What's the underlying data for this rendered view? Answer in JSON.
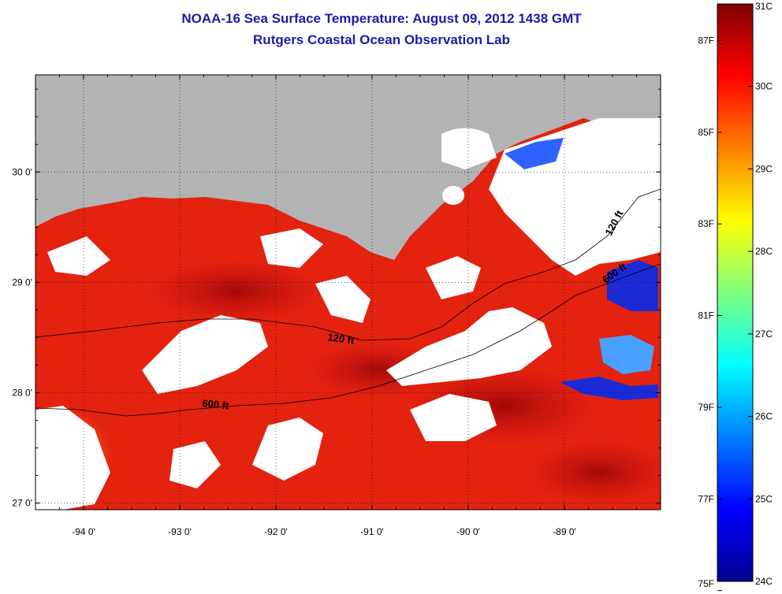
{
  "title": "NOAA-16 Sea Surface Temperature:  August 09, 2012 1438 GMT",
  "subtitle": "Rutgers Coastal Ocean Observation Lab",
  "map": {
    "lon_range": [
      -94.5,
      -88.0
    ],
    "lat_range": [
      26.94,
      30.88
    ],
    "lon_ticks": [
      {
        "value": -94,
        "label": "-94 0'"
      },
      {
        "value": -93,
        "label": "-93 0'"
      },
      {
        "value": -92,
        "label": "-92 0'"
      },
      {
        "value": -91,
        "label": "-91 0'"
      },
      {
        "value": -90,
        "label": "-90 0'"
      },
      {
        "value": -89,
        "label": "-89 0'"
      }
    ],
    "lat_ticks": [
      {
        "value": 27,
        "label": "27 0'"
      },
      {
        "value": 28,
        "label": "28 0'"
      },
      {
        "value": 29,
        "label": "29 0'"
      },
      {
        "value": 30,
        "label": "30 0'"
      }
    ],
    "contour_labels": [
      "120 ft",
      "600 ft",
      "120 ft",
      "600 ft"
    ],
    "colors": {
      "land": "#b3b3b3",
      "cloud": "#ffffff",
      "sst_warm": "#e8200e",
      "sst_hot": "#a80808",
      "sst_cool": "#1a2bd6"
    }
  },
  "colorbar": {
    "celsius": [
      {
        "value": 31,
        "label": "31C"
      },
      {
        "value": 30,
        "label": "30C"
      },
      {
        "value": 29,
        "label": "29C"
      },
      {
        "value": 28,
        "label": "28C"
      },
      {
        "value": 27,
        "label": "27C"
      },
      {
        "value": 26,
        "label": "26C"
      },
      {
        "value": 25,
        "label": "25C"
      },
      {
        "value": 24,
        "label": "24C"
      }
    ],
    "fahrenheit": [
      {
        "value": 87,
        "label": "87F"
      },
      {
        "value": 85,
        "label": "85F"
      },
      {
        "value": 83,
        "label": "83F"
      },
      {
        "value": 81,
        "label": "81F"
      },
      {
        "value": 79,
        "label": "79F"
      },
      {
        "value": 77,
        "label": "77F"
      },
      {
        "value": 75,
        "label": "75F"
      }
    ],
    "range_c": [
      24,
      31
    ]
  }
}
